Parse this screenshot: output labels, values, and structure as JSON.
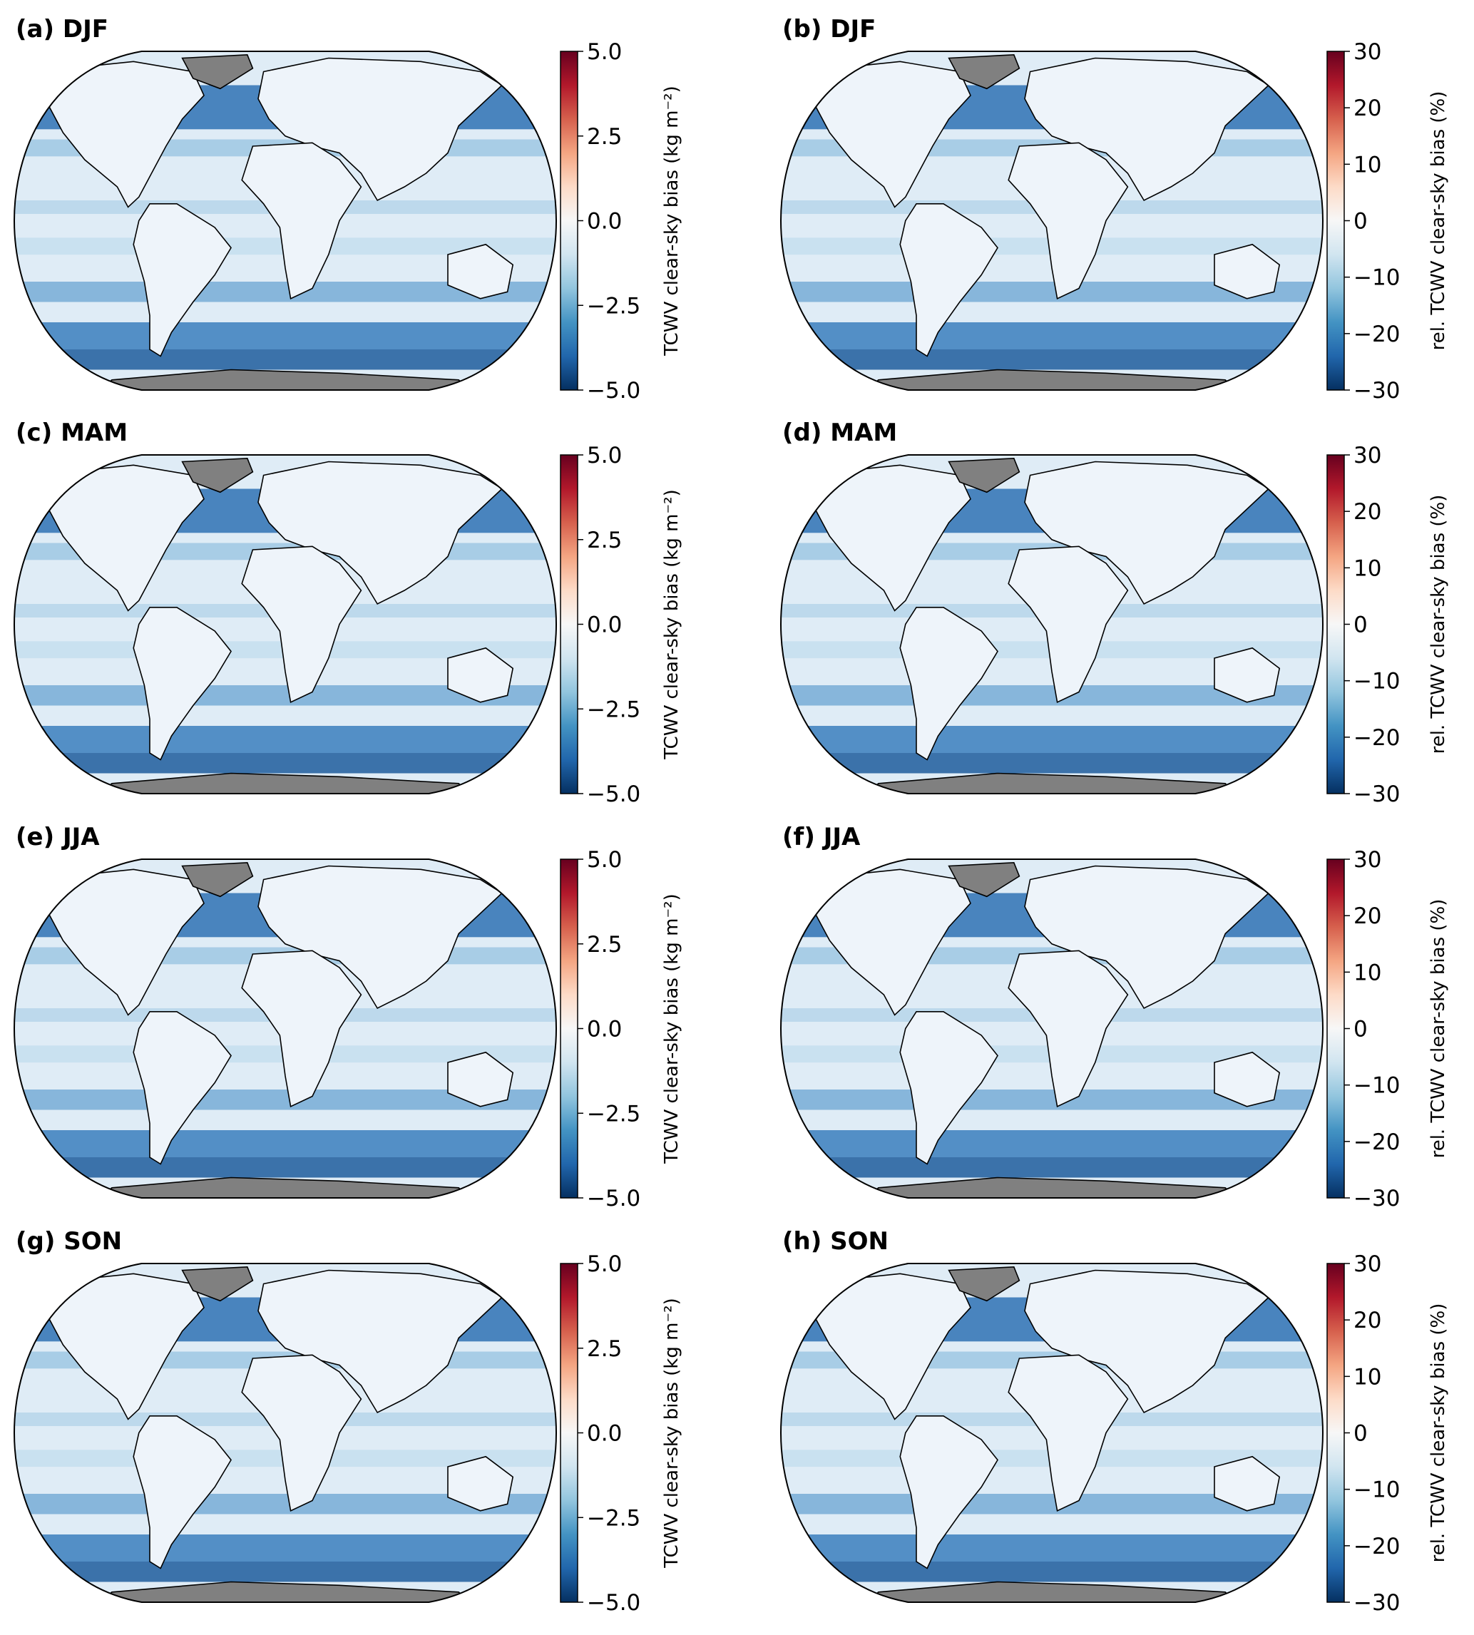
{
  "colormap": {
    "name": "RdBu_r",
    "stops": [
      "#053061",
      "#2166ac",
      "#4393c3",
      "#92c5de",
      "#d1e5f0",
      "#f7f7f7",
      "#fddbc7",
      "#f4a582",
      "#d6604d",
      "#b2182b",
      "#67001f"
    ],
    "land_mask_color": "#808080",
    "coastline_color": "#000000"
  },
  "colorbars": {
    "absolute": {
      "label": "TCWV clear-sky bias (kg m⁻²)",
      "range": [
        -5.0,
        5.0
      ],
      "ticks": [
        {
          "value": -5.0,
          "label": "−5.0"
        },
        {
          "value": -2.5,
          "label": "−2.5"
        },
        {
          "value": 0.0,
          "label": "0.0"
        },
        {
          "value": 2.5,
          "label": "2.5"
        },
        {
          "value": 5.0,
          "label": "5.0"
        }
      ]
    },
    "relative": {
      "label": "rel. TCWV clear-sky bias (%)",
      "range": [
        -30,
        30
      ],
      "ticks": [
        {
          "value": -30,
          "label": "−30"
        },
        {
          "value": -20,
          "label": "−20"
        },
        {
          "value": -10,
          "label": "−10"
        },
        {
          "value": 0,
          "label": "0"
        },
        {
          "value": 10,
          "label": "10"
        },
        {
          "value": 20,
          "label": "20"
        },
        {
          "value": 30,
          "label": "30"
        }
      ]
    }
  },
  "panels": [
    {
      "id": "a",
      "title": "(a) DJF",
      "season": "DJF",
      "colorbar": "absolute"
    },
    {
      "id": "b",
      "title": "(b) DJF",
      "season": "DJF",
      "colorbar": "relative"
    },
    {
      "id": "c",
      "title": "(c) MAM",
      "season": "MAM",
      "colorbar": "absolute"
    },
    {
      "id": "d",
      "title": "(d) MAM",
      "season": "MAM",
      "colorbar": "relative"
    },
    {
      "id": "e",
      "title": "(e) JJA",
      "season": "JJA",
      "colorbar": "absolute"
    },
    {
      "id": "f",
      "title": "(f) JJA",
      "season": "JJA",
      "colorbar": "relative"
    },
    {
      "id": "g",
      "title": "(g) SON",
      "season": "SON",
      "colorbar": "absolute"
    },
    {
      "id": "h",
      "title": "(h) SON",
      "season": "SON",
      "colorbar": "relative"
    }
  ]
}
